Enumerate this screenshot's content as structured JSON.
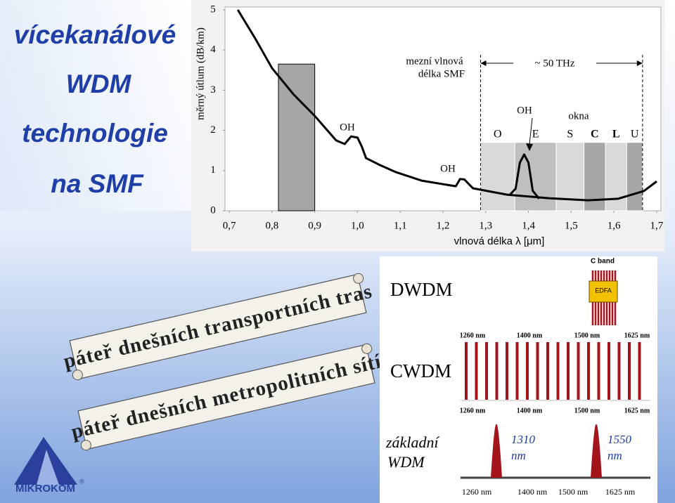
{
  "slide": {
    "title": [
      "vícekanálové",
      "WDM",
      "technologie",
      "na SMF"
    ],
    "scrolls": [
      "páteř dnešních transportních tras",
      "páteř dnešních metropolitních sítí"
    ],
    "logo": "MIKROKOM",
    "logo_mark": "®"
  },
  "chart_data": {
    "type": "line",
    "y_label": "měrný útlum (dB/km)",
    "x_label": "vlnová délka λ [μm]",
    "xlim": [
      0.69,
      1.71
    ],
    "ylim": [
      0,
      5
    ],
    "xticks": [
      {
        "value": 0.7,
        "label": "0,7"
      },
      {
        "value": 0.8,
        "label": "0,8"
      },
      {
        "value": 0.9,
        "label": "0,9"
      },
      {
        "value": 1.0,
        "label": "1,0"
      },
      {
        "value": 1.1,
        "label": "1,1"
      },
      {
        "value": 1.2,
        "label": "1,2"
      },
      {
        "value": 1.3,
        "label": "1,3"
      },
      {
        "value": 1.4,
        "label": "1,4"
      },
      {
        "value": 1.5,
        "label": "1,5"
      },
      {
        "value": 1.6,
        "label": "1,6"
      },
      {
        "value": 1.7,
        "label": "1,7"
      }
    ],
    "yticks": [
      0,
      1,
      2,
      3,
      4,
      5
    ],
    "series": [
      {
        "color": "#000000",
        "x": [
          0.72,
          0.76,
          0.8,
          0.85,
          0.9,
          0.95,
          0.97,
          0.985,
          1.0,
          1.01,
          1.02,
          1.05,
          1.09,
          1.15,
          1.23,
          1.24,
          1.25,
          1.27,
          1.35,
          1.45,
          1.54,
          1.61,
          1.67,
          1.7
        ],
        "values": [
          5.0,
          4.3,
          3.55,
          2.9,
          2.36,
          1.75,
          1.66,
          1.85,
          1.82,
          1.6,
          1.31,
          1.15,
          0.96,
          0.75,
          0.61,
          0.79,
          0.78,
          0.56,
          0.4,
          0.31,
          0.26,
          0.3,
          0.49,
          0.73
        ]
      },
      {
        "color": "#000000",
        "x": [
          1.355,
          1.37,
          1.38,
          1.39,
          1.4,
          1.41,
          1.425
        ],
        "values": [
          0.38,
          0.55,
          1.2,
          1.4,
          1.2,
          0.5,
          0.3
        ]
      }
    ],
    "window": {
      "start": 0.815,
      "end": 0.9,
      "value": 3.65,
      "color": "#a6a6a6"
    },
    "bands": {
      "labels": [
        "O",
        "E",
        "S",
        "C",
        "L",
        "U"
      ],
      "starts": [
        1.288,
        1.368,
        1.465,
        1.53,
        1.58,
        1.63
      ],
      "ends": [
        1.368,
        1.465,
        1.53,
        1.58,
        1.63,
        1.667
      ],
      "values": [
        1.7,
        1.7,
        1.7,
        1.7,
        1.7,
        1.7
      ],
      "colors": [
        "#d9d9d9",
        "#bfbfbf",
        "#d9d9d9",
        "#a6a6a6",
        "#d9d9d9",
        "#a6a6a6"
      ]
    },
    "annotations": {
      "cutoff": [
        "mezní vlnová",
        "délka SMF"
      ],
      "span": "~ 50 THz",
      "oh": [
        "OH",
        "OH",
        "OH"
      ],
      "windows": "okna"
    }
  },
  "panel": {
    "c_band": "C band",
    "edfa": "EDFA",
    "dwdm": "DWDM",
    "cwdm": "CWDM",
    "basic": [
      "základní",
      "WDM"
    ],
    "peaks": [
      [
        "1310",
        "nm"
      ],
      [
        "1550",
        "nm"
      ]
    ],
    "axis": [
      "1260 nm",
      "1400 nm",
      "1500 nm",
      "1625 nm"
    ]
  }
}
